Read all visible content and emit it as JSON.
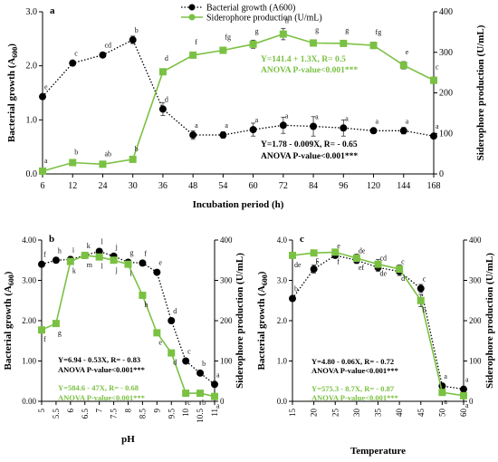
{
  "chart_data": [
    {
      "panel": "a",
      "type": "line",
      "xlabel": "Incubation period (h)",
      "ylabel_left": "Bacterial growth (A",
      "ylabel_left_sub": "600",
      "ylabel_right": "Siderophore production (U/mL)",
      "categories": [
        "6",
        "12",
        "24",
        "30",
        "36",
        "48",
        "54",
        "60",
        "72",
        "84",
        "96",
        "120",
        "144",
        "168"
      ],
      "ylim_left": [
        0,
        3
      ],
      "yticks_left": [
        "0.0",
        "1.0",
        "2.0",
        "3.0"
      ],
      "ylim_right": [
        0,
        400
      ],
      "yticks_right": [
        "0",
        "100",
        "200",
        "300",
        "400"
      ],
      "legend": {
        "placement": "top-center",
        "entries": [
          "Bacterial growth (A600)",
          "Siderophore production (U/mL)"
        ]
      },
      "series": [
        {
          "name": "Bacterial growth (A600)",
          "axis": "left",
          "color": "#000000",
          "style": "dotted",
          "values": [
            1.43,
            2.05,
            2.2,
            2.48,
            1.2,
            0.72,
            0.72,
            0.82,
            0.9,
            0.88,
            0.85,
            0.8,
            0.8,
            0.7
          ],
          "errors": [
            0.03,
            0.03,
            0.03,
            0.07,
            0.12,
            0.08,
            0.06,
            0.12,
            0.15,
            0.18,
            0.15,
            0.05,
            0.06,
            0.03
          ],
          "letters": [
            "e",
            "c",
            "cd",
            "b",
            "d",
            "a",
            "a",
            "a",
            "a",
            "a",
            "a",
            "a",
            "a",
            "a"
          ]
        },
        {
          "name": "Siderophore production (U/mL)",
          "axis": "right",
          "color": "#7ac143",
          "style": "solid",
          "values": [
            7,
            28,
            24,
            36,
            252,
            293,
            305,
            320,
            345,
            323,
            322,
            317,
            268,
            231
          ],
          "errors": [
            2,
            5,
            3,
            4,
            6,
            3,
            4,
            10,
            14,
            8,
            6,
            8,
            9,
            8
          ],
          "letters": [
            "a",
            "b",
            "ab",
            "b",
            "d",
            "f",
            "fg",
            "g",
            "h",
            "g",
            "g",
            "fg",
            "e",
            "c"
          ]
        }
      ],
      "annotations": [
        {
          "text": "Y=141.4 + 1.3X, R= 0.5",
          "color": "#7ac143"
        },
        {
          "text": "ANOVA P-value<0.001***",
          "color": "#7ac143"
        },
        {
          "text": "Y=1.78 - 0.009X, R= - 0.65",
          "color": "#000000"
        },
        {
          "text": "ANOVA P-value<0.001***",
          "color": "#000000"
        }
      ]
    },
    {
      "panel": "b",
      "type": "line",
      "xlabel": "pH",
      "ylabel_left": "Bacterial growth (A",
      "ylabel_left_sub": "600",
      "ylabel_right": "Siderophore production (U/mL)",
      "categories": [
        "5",
        "5.5",
        "6",
        "6.5",
        "7",
        "7.5",
        "8",
        "8.5",
        "9",
        "9.5",
        "10",
        "10.5",
        "11"
      ],
      "ylim_left": [
        0,
        4
      ],
      "yticks_left": [
        "0.00",
        "1.00",
        "2.00",
        "3.00",
        "4.00"
      ],
      "ylim_right": [
        0,
        400
      ],
      "yticks_right": [
        "0",
        "100",
        "200",
        "300",
        "400"
      ],
      "series": [
        {
          "name": "Bacterial growth (A600)",
          "axis": "left",
          "color": "#000000",
          "style": "dotted",
          "values": [
            3.4,
            3.5,
            3.52,
            3.62,
            3.72,
            3.6,
            3.45,
            3.43,
            3.2,
            2.0,
            1.0,
            0.7,
            0.42
          ],
          "letters": [
            "f",
            "h",
            "i",
            "k",
            "l",
            "j",
            "g",
            "f",
            "e",
            "d",
            "c",
            "b",
            "a"
          ]
        },
        {
          "name": "Siderophore production (U/mL)",
          "axis": "right",
          "color": "#7ac143",
          "style": "solid",
          "values": [
            177,
            193,
            347,
            362,
            358,
            350,
            340,
            263,
            170,
            120,
            20,
            20,
            12
          ],
          "letters": [
            "f",
            "g",
            "k",
            "m",
            "l",
            "j",
            "i",
            "h",
            "e",
            "d",
            "c",
            "b",
            "a"
          ]
        }
      ],
      "annotations": [
        {
          "text": "Y=6.94 - 0.53X, R= - 0.83",
          "color": "#000000"
        },
        {
          "text": "ANOVA P-value<0.001***",
          "color": "#000000"
        },
        {
          "text": "Y=584.6 - 47X, R= - 0.68",
          "color": "#7ac143"
        },
        {
          "text": "ANOVA P-value<0.001***",
          "color": "#7ac143"
        }
      ]
    },
    {
      "panel": "c",
      "type": "line",
      "xlabel": "Temperature",
      "ylabel_left": "Bacterial growth (A",
      "ylabel_left_sub": "600",
      "ylabel_right": "Siderophore production (U/mL)",
      "categories": [
        "15",
        "20",
        "25",
        "30",
        "35",
        "40",
        "45",
        "50",
        "60"
      ],
      "ylim_left": [
        0,
        4
      ],
      "yticks_left": [
        "0.0",
        "1.0",
        "2.0",
        "3.0",
        "4.0"
      ],
      "ylim_right": [
        0,
        400
      ],
      "yticks_right": [
        "0",
        "100",
        "200",
        "300",
        "400"
      ],
      "series": [
        {
          "name": "Bacterial growth (A600)",
          "axis": "left",
          "color": "#000000",
          "style": "dotted",
          "values": [
            2.55,
            3.28,
            3.62,
            3.5,
            3.32,
            3.22,
            2.8,
            0.38,
            0.3
          ],
          "errors": [
            0.05,
            0.1,
            0.05,
            0.08,
            0.1,
            0.1,
            0.1,
            0.05,
            0.05
          ],
          "letters": [
            "b",
            "c",
            "e",
            "de",
            "cd",
            "c",
            "c",
            "a",
            "a"
          ]
        },
        {
          "name": "Siderophore production (U/mL)",
          "axis": "right",
          "color": "#7ac143",
          "style": "solid",
          "values": [
            362,
            368,
            370,
            355,
            340,
            328,
            250,
            22,
            14
          ],
          "errors": [
            5,
            6,
            5,
            10,
            12,
            10,
            15,
            3,
            3
          ],
          "letters": [
            "de",
            "e",
            "f",
            "ef",
            "de",
            "d",
            "b",
            "a",
            "a"
          ]
        }
      ],
      "annotations": [
        {
          "text": "Y=4.80 - 0.06X, R= - 0.72",
          "color": "#000000"
        },
        {
          "text": "ANOVA P-value<0.001***",
          "color": "#000000"
        },
        {
          "text": "Y=575.3 - 8.7X, R= - 0.87",
          "color": "#7ac143"
        },
        {
          "text": "ANOVA P-value<0.001***",
          "color": "#7ac143"
        }
      ]
    }
  ]
}
